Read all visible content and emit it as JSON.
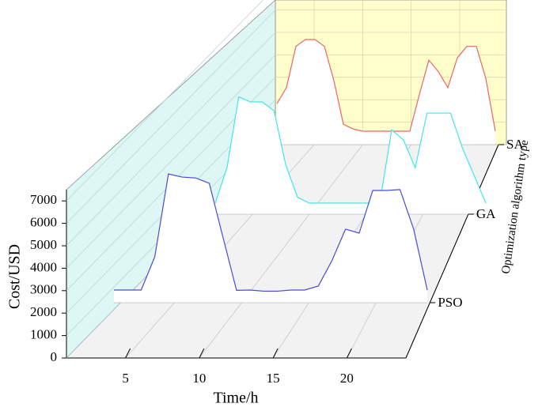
{
  "chart_data": {
    "type": "waterfall",
    "x": [
      1,
      2,
      3,
      4,
      5,
      6,
      7,
      8,
      9,
      10,
      11,
      12,
      13,
      14,
      15,
      16,
      17,
      18,
      19,
      20,
      21,
      22,
      23,
      24
    ],
    "xlim": [
      1,
      24
    ],
    "xticks": [
      5,
      10,
      15,
      20
    ],
    "ylim": [
      0,
      7500
    ],
    "yticks": [
      0,
      1000,
      2000,
      3000,
      4000,
      5000,
      6000,
      7000
    ],
    "x_label": "Time/h",
    "y_label": "Cost/USD",
    "z_label": "Optimization algorithm type",
    "series": [
      {
        "name": "PSO",
        "color": "#4a4ad8",
        "values": [
          3000,
          3000,
          3000,
          4170,
          7080,
          6970,
          6940,
          6750,
          4860,
          2990,
          3000,
          2960,
          2960,
          3000,
          3000,
          3140,
          4030,
          5140,
          5000,
          6500,
          6500,
          6530,
          5140,
          3000
        ]
      },
      {
        "name": "GA",
        "color": "#3ee8e8",
        "values": [
          3000,
          4400,
          7200,
          7000,
          7000,
          6650,
          4500,
          3230,
          3000,
          3000,
          3000,
          3000,
          3000,
          3000,
          3050,
          5900,
          5500,
          4400,
          6560,
          6560,
          6560,
          5190,
          4100,
          3000
        ]
      },
      {
        "name": "SA",
        "color": "#f06464",
        "values": [
          4200,
          4900,
          6700,
          7000,
          7000,
          6700,
          5200,
          3300,
          3100,
          3000,
          3000,
          3000,
          3000,
          3000,
          3000,
          4600,
          6100,
          5600,
          4900,
          6200,
          6700,
          6700,
          5300,
          3000
        ]
      }
    ]
  }
}
